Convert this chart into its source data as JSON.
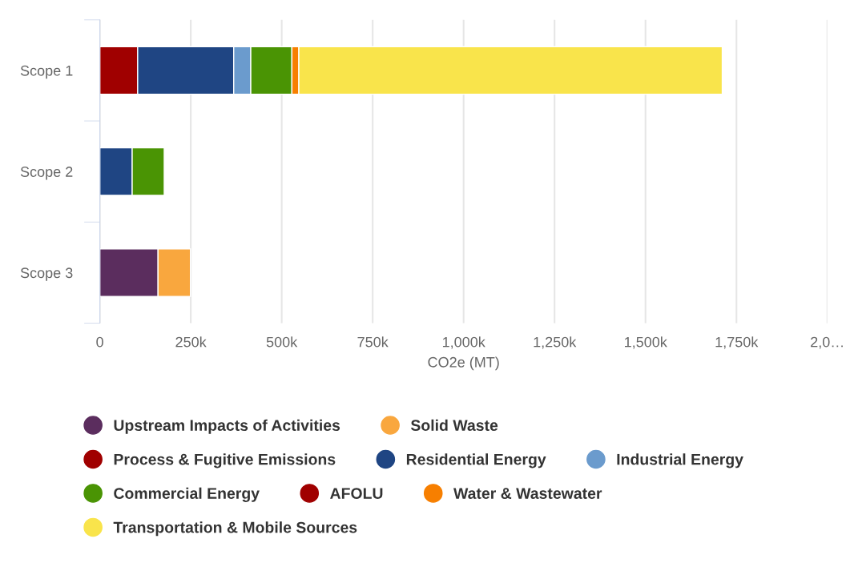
{
  "chart_data": {
    "type": "bar",
    "orientation": "horizontal",
    "stacked": true,
    "categories": [
      "Scope 1",
      "Scope 2",
      "Scope 3"
    ],
    "xlabel": "CO2e (MT)",
    "xlim": [
      0,
      2000000
    ],
    "xticks": [
      0,
      {
        "value": 250000,
        "label": "250k"
      },
      {
        "value": 500000,
        "label": "500k"
      },
      {
        "value": 750000,
        "label": "750k"
      },
      {
        "value": 1000000,
        "label": "1,000k"
      },
      {
        "value": 1250000,
        "label": "1,250k"
      },
      {
        "value": 1500000,
        "label": "1,500k"
      },
      {
        "value": 1750000,
        "label": "1,750k"
      },
      {
        "value": 2000000,
        "label": "2,0…"
      }
    ],
    "grid": "x",
    "legend": "bottom",
    "marker": "circle",
    "series": [
      {
        "name": "Upstream Impacts of Activities",
        "color": "#5b2d5e",
        "values": [
          null,
          null,
          160000
        ]
      },
      {
        "name": "Solid Waste",
        "color": "#f9a73e",
        "values": [
          null,
          null,
          89000
        ]
      },
      {
        "name": "Process & Fugitive Emissions",
        "color": "#a00000",
        "values": [
          104000,
          null,
          null
        ]
      },
      {
        "name": "Residential Energy",
        "color": "#1f4583",
        "values": [
          264000,
          89000,
          null
        ]
      },
      {
        "name": "Industrial Energy",
        "color": "#6b9bcd",
        "values": [
          47000,
          null,
          null
        ]
      },
      {
        "name": "Commercial Energy",
        "color": "#4a9404",
        "values": [
          113000,
          88000,
          null
        ]
      },
      {
        "name": "AFOLU",
        "color": "#a00000",
        "values": [
          null,
          null,
          null
        ]
      },
      {
        "name": "Water & Wastewater",
        "color": "#f77f00",
        "values": [
          19000,
          null,
          null
        ]
      },
      {
        "name": "Transportation & Mobile Sources",
        "color": "#f9e44b",
        "values": [
          1164000,
          null,
          null
        ]
      }
    ]
  }
}
